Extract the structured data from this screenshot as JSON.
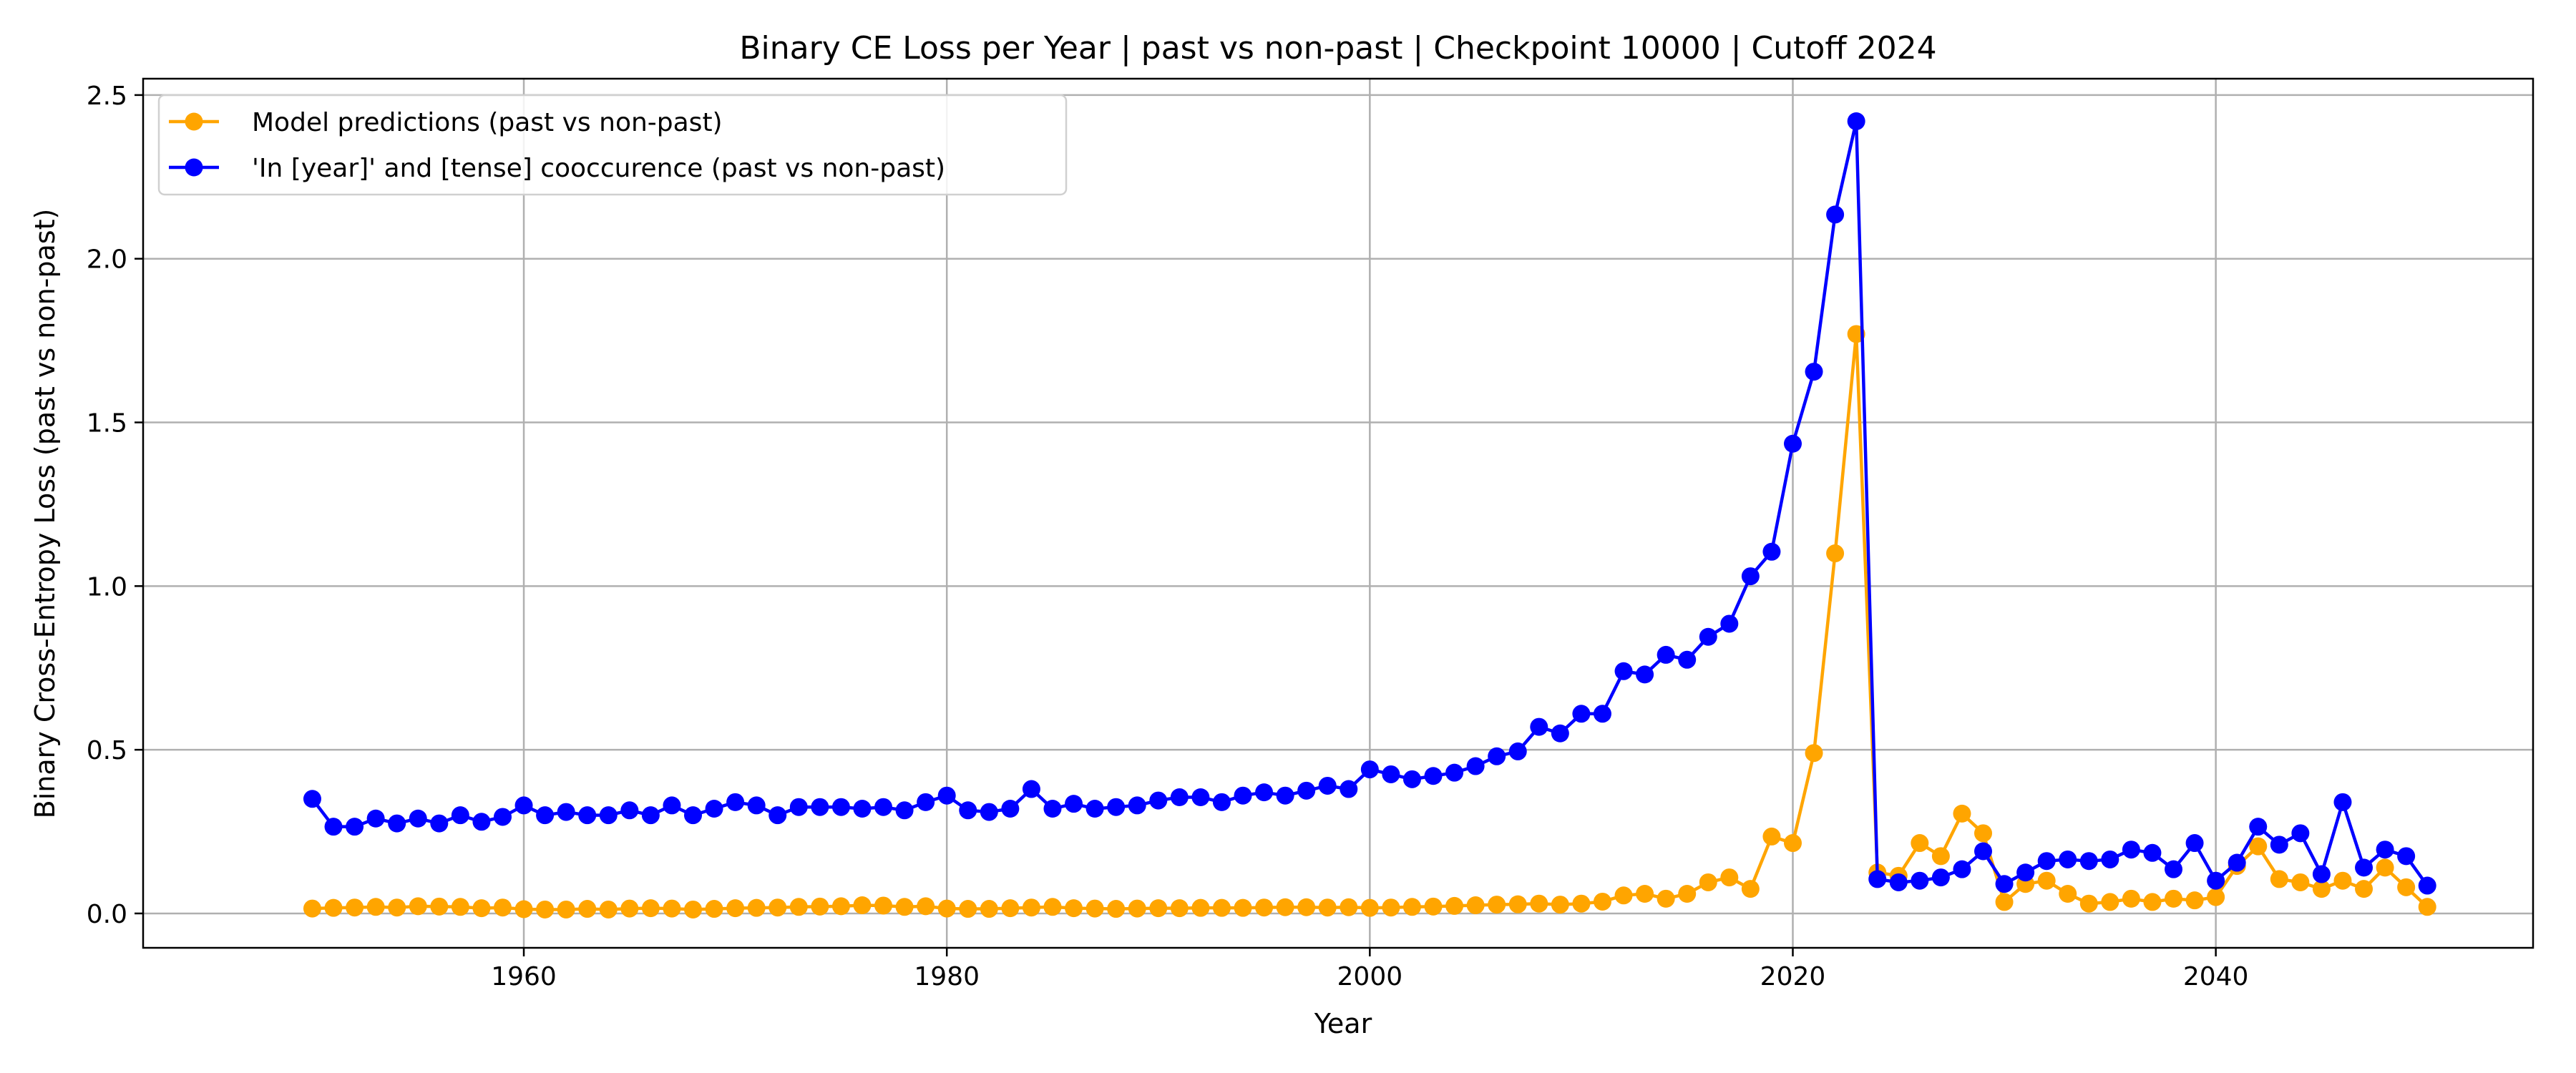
{
  "chart_data": {
    "type": "line",
    "title": "Binary CE Loss per Year | past vs non-past | Checkpoint 10000 | Cutoff 2024",
    "xlabel": "Year",
    "ylabel": "Binary Cross-Entropy Loss (past vs non-past)",
    "xlim": [
      1942,
      2055
    ],
    "ylim": [
      -0.105,
      2.55
    ],
    "xticks": [
      1960,
      1980,
      2000,
      2020,
      2040
    ],
    "yticks": [
      0.0,
      0.5,
      1.0,
      1.5,
      2.0,
      2.5
    ],
    "grid": true,
    "legend": "top-left",
    "x_start": 1950,
    "x_end": 2050,
    "series": [
      {
        "name": "Model predictions (past vs non-past)",
        "color": "#FFA500",
        "marker": "circle",
        "values": [
          0.015,
          0.017,
          0.018,
          0.02,
          0.018,
          0.022,
          0.021,
          0.02,
          0.016,
          0.018,
          0.013,
          0.012,
          0.012,
          0.014,
          0.012,
          0.015,
          0.016,
          0.015,
          0.012,
          0.014,
          0.016,
          0.017,
          0.018,
          0.02,
          0.021,
          0.022,
          0.025,
          0.024,
          0.02,
          0.022,
          0.015,
          0.014,
          0.014,
          0.016,
          0.018,
          0.02,
          0.016,
          0.015,
          0.014,
          0.015,
          0.016,
          0.016,
          0.017,
          0.017,
          0.017,
          0.018,
          0.019,
          0.019,
          0.018,
          0.019,
          0.017,
          0.018,
          0.02,
          0.021,
          0.023,
          0.025,
          0.027,
          0.028,
          0.03,
          0.027,
          0.03,
          0.036,
          0.055,
          0.06,
          0.045,
          0.06,
          0.095,
          0.11,
          0.075,
          0.235,
          0.215,
          0.49,
          1.1,
          1.77,
          0.125,
          0.115,
          0.215,
          0.175,
          0.305,
          0.245,
          0.035,
          0.09,
          0.1,
          0.06,
          0.03,
          0.035,
          0.045,
          0.035,
          0.045,
          0.04,
          0.05,
          0.145,
          0.205,
          0.105,
          0.095,
          0.075,
          0.1,
          0.075,
          0.14,
          0.08,
          0.02
        ]
      },
      {
        "name": "'In [year]' and [tense] cooccurence (past vs non-past)",
        "color": "#0000FF",
        "marker": "circle",
        "values": [
          0.35,
          0.265,
          0.265,
          0.29,
          0.275,
          0.29,
          0.275,
          0.3,
          0.28,
          0.295,
          0.33,
          0.3,
          0.31,
          0.3,
          0.3,
          0.315,
          0.3,
          0.33,
          0.3,
          0.32,
          0.34,
          0.33,
          0.3,
          0.325,
          0.325,
          0.325,
          0.32,
          0.325,
          0.315,
          0.34,
          0.36,
          0.315,
          0.31,
          0.32,
          0.38,
          0.32,
          0.335,
          0.32,
          0.325,
          0.33,
          0.345,
          0.355,
          0.355,
          0.34,
          0.36,
          0.37,
          0.36,
          0.375,
          0.39,
          0.38,
          0.44,
          0.425,
          0.41,
          0.42,
          0.43,
          0.45,
          0.48,
          0.495,
          0.57,
          0.55,
          0.61,
          0.61,
          0.74,
          0.73,
          0.79,
          0.775,
          0.845,
          0.885,
          1.03,
          1.105,
          1.435,
          1.655,
          2.135,
          2.42,
          0.105,
          0.095,
          0.1,
          0.11,
          0.135,
          0.19,
          0.09,
          0.125,
          0.16,
          0.165,
          0.16,
          0.165,
          0.195,
          0.185,
          0.135,
          0.215,
          0.1,
          0.155,
          0.265,
          0.21,
          0.245,
          0.12,
          0.34,
          0.14,
          0.195,
          0.175,
          0.085
        ]
      }
    ]
  }
}
